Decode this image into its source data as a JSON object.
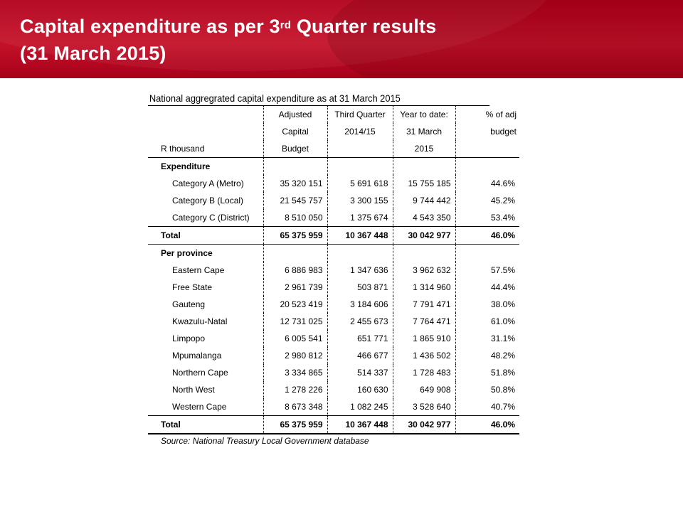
{
  "slide": {
    "title_line1_pre": "Capital expenditure as per 3",
    "title_sup": "rd",
    "title_line1_post": " Quarter results",
    "title_line2": "(31 March 2015)"
  },
  "table": {
    "caption": "National aggregrated capital expenditure as at 31 March 2015",
    "header": {
      "unit": "R thousand",
      "col1": [
        "Adjusted",
        "Capital",
        "Budget"
      ],
      "col2": [
        "Third Quarter",
        "2014/15",
        ""
      ],
      "col3": [
        "Year to date:",
        "31 March",
        "2015"
      ],
      "col4": [
        "% of adj",
        "budget",
        ""
      ]
    },
    "expenditure": {
      "label": "Expenditure",
      "rows": [
        {
          "name": "Category A (Metro)",
          "budget": "35 320 151",
          "q3": "5 691 618",
          "ytd": "15 755 185",
          "pct": "44.6%"
        },
        {
          "name": "Category B (Local)",
          "budget": "21 545 757",
          "q3": "3 300 155",
          "ytd": "9 744 442",
          "pct": "45.2%"
        },
        {
          "name": "Category C (District)",
          "budget": "8 510 050",
          "q3": "1 375 674",
          "ytd": "4 543 350",
          "pct": "53.4%"
        }
      ],
      "total": {
        "name": "Total",
        "budget": "65 375 959",
        "q3": "10 367 448",
        "ytd": "30 042 977",
        "pct": "46.0%"
      }
    },
    "province": {
      "label": "Per province",
      "rows": [
        {
          "name": "Eastern Cape",
          "budget": "6 886 983",
          "q3": "1 347 636",
          "ytd": "3 962 632",
          "pct": "57.5%"
        },
        {
          "name": "Free State",
          "budget": "2 961 739",
          "q3": "503 871",
          "ytd": "1 314 960",
          "pct": "44.4%"
        },
        {
          "name": "Gauteng",
          "budget": "20 523 419",
          "q3": "3 184 606",
          "ytd": "7 791 471",
          "pct": "38.0%"
        },
        {
          "name": "Kwazulu-Natal",
          "budget": "12 731 025",
          "q3": "2 455 673",
          "ytd": "7 764 471",
          "pct": "61.0%"
        },
        {
          "name": "Limpopo",
          "budget": "6 005 541",
          "q3": "651 771",
          "ytd": "1 865 910",
          "pct": "31.1%"
        },
        {
          "name": "Mpumalanga",
          "budget": "2 980 812",
          "q3": "466 677",
          "ytd": "1 436 502",
          "pct": "48.2%"
        },
        {
          "name": "Northern Cape",
          "budget": "3 334 865",
          "q3": "514 337",
          "ytd": "1 728 483",
          "pct": "51.8%"
        },
        {
          "name": "North West",
          "budget": "1 278 226",
          "q3": "160 630",
          "ytd": "649 908",
          "pct": "50.8%"
        },
        {
          "name": "Western Cape",
          "budget": "8 673 348",
          "q3": "1 082 245",
          "ytd": "3 528 640",
          "pct": "40.7%"
        }
      ],
      "total": {
        "name": "Total",
        "budget": "65 375 959",
        "q3": "10 367 448",
        "ytd": "30 042 977",
        "pct": "46.0%"
      }
    },
    "source": "Source: National Treasury Local Government database"
  },
  "colors": {
    "banner": "#b3001b",
    "rule": "#b3001b"
  }
}
